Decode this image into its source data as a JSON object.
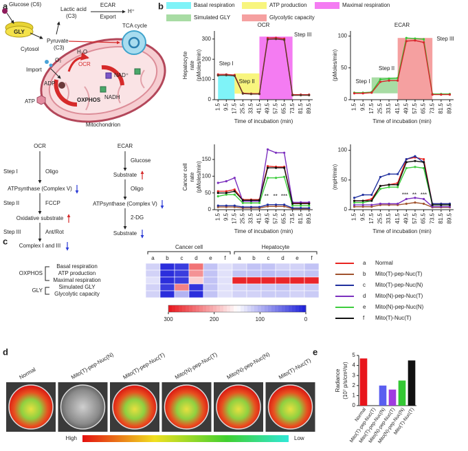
{
  "panel_labels": [
    "a",
    "b",
    "c",
    "d",
    "e"
  ],
  "diagram": {
    "glucose": "Glucose (C6)",
    "gly": "GLY",
    "pyruvate": "Pyruvate",
    "pyruvate_c": "(C3)",
    "lactic": "Lactic acid",
    "lactic_c": "(C3)",
    "ecar": "ECAR",
    "export": "Export",
    "proton": "H⁺",
    "tca": "TCA cycle",
    "cytosol": "Cytosol",
    "import": "Import",
    "oxygen": "O₂",
    "water": "H₂O",
    "ocr": "OCR",
    "adp": "ADP",
    "nad": "NAD⁺",
    "nadh": "NADH",
    "atp": "ATP",
    "oxphos": "OXPHOS",
    "mito": "Mitochondrion"
  },
  "flow": {
    "ocr": [
      "OCR",
      "Step I",
      "Oligo",
      "ATPsynthase (Complex V)",
      "Step II",
      "FCCP",
      "Oxidative substrate",
      "Step III",
      "Ant/Rot",
      "Complex I and III"
    ],
    "ecar": [
      "ECAR",
      "Glucose",
      "Substrate",
      "Oligo",
      "ATPsynthase (Complex V)",
      "2-DG",
      "Substrate"
    ]
  },
  "chart_data": [
    {
      "type": "line",
      "title": "OCR",
      "ylabel": [
        "Hepatocyte",
        "rate",
        "(pMoles/min)"
      ],
      "xlabel": "Time of incubation (min)",
      "x": [
        1.5,
        9.5,
        17.5,
        25.5,
        33.5,
        41.5,
        49.5,
        57.5,
        65.5,
        73.5,
        81.5,
        89.5
      ],
      "xlim": [
        -2,
        93
      ],
      "xticks": [
        1.5,
        9.5,
        17.5,
        25.5,
        33.5,
        41.5,
        49.5,
        57.5,
        65.5,
        73.5,
        81.5,
        89.5
      ],
      "ylim": [
        0,
        340
      ],
      "yticks": [
        0,
        100,
        200,
        300
      ],
      "regions": [
        {
          "name": "Basal respiration",
          "color": "#7ff3f8",
          "x": [
            1.5,
            17.5
          ],
          "y": [
            0,
            122
          ]
        },
        {
          "name": "ATP production",
          "color": "#f8f57e",
          "x": [
            17.5,
            41.5
          ],
          "y": [
            30,
            130
          ]
        },
        {
          "name": "Maximal respiration",
          "color": "#f47cf2",
          "x": [
            41.5,
            73.5
          ],
          "y": [
            0,
            312
          ]
        }
      ],
      "annotations": [
        "Step I",
        "Step II",
        "Step III"
      ],
      "series": [
        {
          "color": "#d7262b",
          "values": [
            125,
            125,
            122,
            32,
            30,
            30,
            305,
            306,
            302,
            25,
            25,
            25
          ]
        },
        {
          "color": "#5a3a2a",
          "values": [
            120,
            121,
            118,
            30,
            28,
            28,
            298,
            300,
            296,
            22,
            22,
            22
          ]
        }
      ]
    },
    {
      "type": "line",
      "title": "ECAR",
      "ylabel": [
        "(pMoles/min)"
      ],
      "xlabel": "Time of incubation (min)",
      "x": [
        1.5,
        9.5,
        17.5,
        25.5,
        33.5,
        41.5,
        49.5,
        57.5,
        65.5,
        73.5,
        81.5,
        89.5
      ],
      "xlim": [
        -2,
        93
      ],
      "xticks": [
        1.5,
        9.5,
        17.5,
        25.5,
        33.5,
        41.5,
        49.5,
        57.5,
        65.5,
        73.5,
        81.5,
        89.5
      ],
      "ylim": [
        0,
        108
      ],
      "yticks": [
        0,
        50,
        100
      ],
      "regions": [
        {
          "name": "Simulated GLY",
          "color": "#a8dca4",
          "x": [
            17.5,
            41.5
          ],
          "y": [
            10,
            35
          ]
        },
        {
          "name": "Glycolytic capacity",
          "color": "#f5a0a0",
          "x": [
            41.5,
            73.5
          ],
          "y": [
            0,
            97
          ]
        }
      ],
      "annotations": [
        "Step I",
        "Step II",
        "Step III"
      ],
      "series": [
        {
          "color": "#35c435",
          "values": [
            11,
            11,
            12,
            32,
            33,
            34,
            97,
            96,
            95,
            9,
            9,
            9
          ]
        },
        {
          "color": "#d7262b",
          "values": [
            10,
            10,
            11,
            28,
            30,
            30,
            92,
            93,
            90,
            8,
            8,
            8
          ]
        }
      ]
    },
    {
      "type": "line",
      "ylabel": [
        "Cancer cell",
        "rate",
        "(pMoles/min)"
      ],
      "xlabel": "Time of incubation (min)",
      "x": [
        1.5,
        9.5,
        17.5,
        25.5,
        33.5,
        41.5,
        49.5,
        57.5,
        65.5,
        73.5,
        81.5,
        89.5
      ],
      "xlim": [
        -2,
        93
      ],
      "xticks": [
        1.5,
        9.5,
        17.5,
        25.5,
        33.5,
        41.5,
        49.5,
        57.5,
        65.5,
        73.5,
        81.5,
        89.5
      ],
      "ylim": [
        0,
        195
      ],
      "yticks": [
        0,
        50,
        100,
        150
      ],
      "annotations": [
        "**",
        "**",
        "***"
      ],
      "series": [
        {
          "letter": "a",
          "name": "Normal",
          "color": "#e8231f",
          "values": [
            55,
            55,
            60,
            30,
            30,
            30,
            130,
            128,
            128,
            20,
            20,
            20
          ]
        },
        {
          "letter": "b",
          "name": "Mito(T)-pep-Nuc(T)",
          "color": "#a0522d",
          "values": [
            8,
            8,
            8,
            5,
            5,
            5,
            10,
            10,
            10,
            3,
            3,
            3
          ]
        },
        {
          "letter": "c",
          "name": "Mito(T)-pep-Nuc(N)",
          "color": "#1f2f9e",
          "values": [
            12,
            12,
            12,
            8,
            8,
            8,
            15,
            15,
            15,
            5,
            5,
            5
          ]
        },
        {
          "letter": "d",
          "name": "Mito(N)-pep-Nuc(T)",
          "color": "#7b2fbe",
          "values": [
            80,
            85,
            95,
            25,
            25,
            25,
            180,
            170,
            170,
            22,
            22,
            22
          ]
        },
        {
          "letter": "e",
          "name": "Mito(N)-pep-Nuc(N)",
          "color": "#3ccc3c",
          "values": [
            40,
            45,
            45,
            20,
            20,
            20,
            95,
            95,
            98,
            12,
            12,
            12
          ]
        },
        {
          "letter": "f",
          "name": "Mito(T)-Nuc(T)",
          "color": "#111111",
          "values": [
            50,
            50,
            55,
            28,
            28,
            28,
            125,
            125,
            125,
            18,
            18,
            18
          ]
        }
      ]
    },
    {
      "type": "line",
      "ylabel": [
        "(mpH/min)"
      ],
      "xlabel": "Time of incubation (min)",
      "x": [
        1.5,
        9.5,
        17.5,
        25.5,
        33.5,
        41.5,
        49.5,
        57.5,
        65.5,
        73.5,
        81.5,
        89.5
      ],
      "xlim": [
        -2,
        93
      ],
      "xticks": [
        1.5,
        9.5,
        17.5,
        25.5,
        33.5,
        41.5,
        49.5,
        57.5,
        65.5,
        73.5,
        81.5,
        89.5
      ],
      "ylim": [
        0,
        110
      ],
      "yticks": [
        0,
        50,
        100
      ],
      "annotations": [
        "***",
        "**",
        "***"
      ],
      "series": [
        {
          "color": "#e8231f",
          "values": [
            15,
            15,
            18,
            40,
            42,
            45,
            85,
            88,
            85,
            10,
            10,
            10
          ]
        },
        {
          "color": "#a0522d",
          "values": [
            5,
            5,
            5,
            8,
            8,
            8,
            10,
            12,
            10,
            4,
            4,
            4
          ]
        },
        {
          "color": "#1f2f9e",
          "values": [
            20,
            25,
            25,
            55,
            60,
            60,
            85,
            90,
            80,
            10,
            10,
            10
          ]
        },
        {
          "color": "#7b2fbe",
          "values": [
            8,
            8,
            8,
            10,
            10,
            10,
            18,
            20,
            18,
            5,
            5,
            5
          ]
        },
        {
          "color": "#3ccc3c",
          "values": [
            12,
            12,
            15,
            35,
            38,
            38,
            70,
            72,
            70,
            8,
            8,
            8
          ]
        },
        {
          "color": "#111111",
          "values": [
            15,
            15,
            15,
            40,
            42,
            42,
            80,
            82,
            80,
            8,
            8,
            8
          ]
        }
      ]
    },
    {
      "type": "heatmap",
      "groups": [
        {
          "label": "Cancer cell",
          "columns": [
            "a",
            "b",
            "c",
            "d",
            "e",
            "f"
          ]
        },
        {
          "label": "Hepatocyte",
          "columns": [
            "a",
            "b",
            "c",
            "d",
            "e",
            "f"
          ]
        }
      ],
      "row_groups": [
        "OXPHOS",
        "GLY"
      ],
      "rows": [
        "Basal respiration",
        "ATP production",
        "Maximal respiration",
        "Simulated GLY",
        "Glycolytic capacity"
      ],
      "values": [
        [
          120,
          10,
          20,
          240,
          110,
          130,
          120,
          110,
          110,
          120,
          120,
          110
        ],
        [
          120,
          10,
          20,
          220,
          110,
          130,
          110,
          110,
          105,
          110,
          115,
          110
        ],
        [
          130,
          10,
          20,
          180,
          110,
          130,
          290,
          290,
          290,
          290,
          290,
          290
        ],
        [
          120,
          20,
          230,
          15,
          110,
          130,
          120,
          115,
          115,
          110,
          120,
          115
        ],
        [
          120,
          10,
          100,
          10,
          110,
          130,
          120,
          120,
          115,
          115,
          120,
          115
        ]
      ],
      "colorbar": {
        "lim": [
          300,
          0
        ],
        "ticks": [
          300,
          200,
          100,
          0
        ],
        "colors": [
          "#1c1fd9",
          "#ffffff",
          "#e8151b"
        ]
      }
    },
    {
      "type": "bar",
      "ylabel": [
        "Radiance",
        "(10⁷ p/s/cm²/sr)"
      ],
      "categories": [
        "Normal",
        "Mito(T)-pep-Nuc(T)",
        "Mito(T)-pep-Nuc(N)",
        "Mito(N)-pep-Nuc(T)",
        "Mito(N)-pep-Nuc(N)",
        "Mito(T)-Nuc(T)"
      ],
      "values": [
        4.7,
        0,
        2.0,
        1.6,
        2.5,
        4.5
      ],
      "colors": [
        "#e8151b",
        "#a0522d",
        "#5a5ef0",
        "#a03ce0",
        "#34c834",
        "#111111"
      ],
      "ylim": [
        0,
        5
      ],
      "yticks": [
        0,
        1,
        2,
        3,
        4,
        5
      ]
    }
  ],
  "imaging": {
    "labels": [
      "Normal",
      "Mito(T)-pep-Nuc(N)",
      "Mito(T)-pep-Nuc(T)",
      "Mito(N)-pep-Nuc(T)",
      "Mito(N)-pep-Nuc(N)",
      "Mito(T)-Nuc(T)"
    ],
    "scale": [
      "High",
      "Low"
    ]
  }
}
